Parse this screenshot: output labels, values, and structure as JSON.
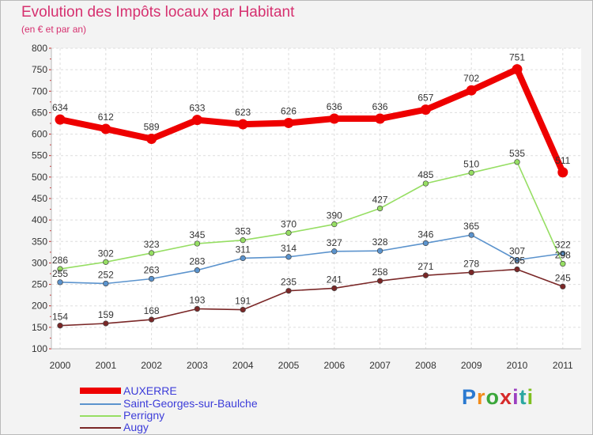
{
  "header": {
    "title": "Evolution des Impôts locaux par Habitant",
    "subtitle": "(en € et par an)"
  },
  "logo": {
    "text": "Proxiti",
    "colors": [
      "#2a79d0",
      "#f28b19",
      "#3aa63a",
      "#d62a2a",
      "#9b3fc0",
      "#2aa7a1",
      "#7fbf20"
    ]
  },
  "chart_data": {
    "type": "line",
    "title": "Evolution des Impôts locaux par Habitant",
    "subtitle": "(en € et par an)",
    "xlabel": "",
    "ylabel": "",
    "categories": [
      "2000",
      "2001",
      "2002",
      "2003",
      "2004",
      "2005",
      "2006",
      "2007",
      "2008",
      "2009",
      "2010",
      "2011"
    ],
    "yticks": [
      "100",
      "150",
      "200",
      "250",
      "300",
      "350",
      "400",
      "450",
      "500",
      "550",
      "600",
      "650",
      "700",
      "750",
      "800"
    ],
    "ylim": [
      100,
      800
    ],
    "grid": true,
    "legend_position": "bottom-left",
    "series": [
      {
        "name": "AUXERRE",
        "color": "#ee0000",
        "thick": true,
        "values": [
          634,
          612,
          589,
          633,
          623,
          626,
          636,
          636,
          657,
          702,
          751,
          511
        ]
      },
      {
        "name": "Saint-Georges-sur-Baulche",
        "color": "#5b93cd",
        "thick": false,
        "values": [
          255,
          252,
          263,
          283,
          311,
          314,
          327,
          328,
          346,
          365,
          307,
          322
        ]
      },
      {
        "name": "Perrigny",
        "color": "#96de63",
        "thick": false,
        "values": [
          286,
          302,
          323,
          345,
          353,
          370,
          390,
          427,
          485,
          510,
          535,
          298
        ]
      },
      {
        "name": "Augy",
        "color": "#7a2727",
        "thick": false,
        "values": [
          154,
          159,
          168,
          193,
          191,
          235,
          241,
          258,
          271,
          278,
          285,
          245
        ]
      }
    ]
  }
}
